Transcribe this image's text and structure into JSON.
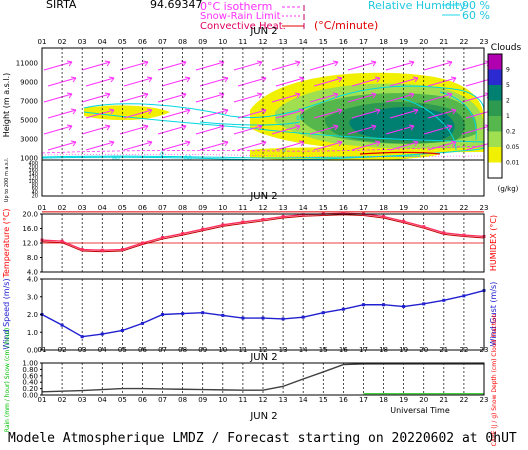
{
  "header": {
    "station": "SIRTA",
    "coords": "94.69347",
    "legend_iso": "0°C isotherm",
    "legend_snow": "Snow-Rain Limit",
    "legend_conv": "Convective Heat.",
    "legend_conv_unit": "(°C/minute)",
    "legend_rh": "Relative Humidity",
    "rh_high": "90 %",
    "rh_low": "60 %"
  },
  "hours": [
    "01",
    "02",
    "03",
    "04",
    "05",
    "06",
    "07",
    "08",
    "09",
    "10",
    "11",
    "12",
    "13",
    "14",
    "15",
    "16",
    "17",
    "18",
    "19",
    "20",
    "21",
    "22",
    "23"
  ],
  "date_label": "JUN  2",
  "xaxis_label": "Universal Time",
  "footer": "Modele Atmospherique LMDZ / Forecast starting on 20220602 at 0hUT",
  "colors": {
    "hum_cyan": "#00d8e0",
    "conv_red": "#e00000",
    "magenta": "#ff30ff",
    "temp_red": "#ff3060",
    "wind_blue": "#2020d0",
    "rain_green": "#00c000",
    "cape_red": "#ff0000"
  },
  "chart_data": [
    {
      "type": "heatmap",
      "ylabel": "Height (m a.s.l.)",
      "ylabel_low": "Up to 200 m a.s.l.",
      "yticks": [
        "11000",
        "9000",
        "7000",
        "5000",
        "3000",
        "1000",
        "400",
        "200",
        "160",
        "140",
        "120",
        "100",
        "80",
        "60",
        "40",
        "20"
      ],
      "legend_title": "Clouds",
      "legend_unit": "(g/kg)",
      "cloud_levels": [
        "9",
        "5",
        "2",
        "1",
        "0.2",
        "0.05",
        "0.01"
      ],
      "cloud_colors": [
        "#b000b0",
        "#2a2ad0",
        "#008070",
        "#2e9a50",
        "#56b84c",
        "#a0e050",
        "#f0f000",
        "#ffffff"
      ],
      "wind_arrows": "magenta",
      "labels_in_plot": [
        "80",
        "0"
      ]
    },
    {
      "type": "line",
      "ylabel": "Temperature (°C)",
      "ylabel_right": "HUMIDEX (°C)",
      "ylim": [
        4,
        20
      ],
      "yticks": [
        "20.0",
        "16.0",
        "12.0",
        "8.0",
        "4.0"
      ],
      "series": [
        {
          "values": [
            12.8,
            12.5,
            10.2,
            10.0,
            10.2,
            12.0,
            13.5,
            14.6,
            15.8,
            17.0,
            17.8,
            18.5,
            19.3,
            19.8,
            20.0,
            20.2,
            20.0,
            19.3,
            18.0,
            16.5,
            14.8,
            14.2,
            13.8
          ]
        }
      ]
    },
    {
      "type": "line",
      "ylabel": "Wind Speed (m/s)",
      "ylabel_right": "Wind Gust (m/s)",
      "ylim": [
        0,
        4
      ],
      "yticks": [
        "4.0",
        "3.0",
        "2.0",
        "1.0",
        "0.0"
      ],
      "series": [
        {
          "values": [
            2.0,
            1.4,
            0.75,
            0.9,
            1.1,
            1.5,
            2.0,
            2.05,
            2.1,
            1.95,
            1.8,
            1.8,
            1.75,
            1.85,
            2.1,
            2.3,
            2.55,
            2.55,
            2.45,
            2.6,
            2.8,
            3.05,
            3.35
          ]
        }
      ]
    },
    {
      "type": "line",
      "ylabel": "Rain (mm / hour) Snow (cm / hour)",
      "ylabel_right": "CAPE (J / g) Snow Depth (cm) Cloud Fraction",
      "ylim": [
        0,
        1
      ],
      "yticks": [
        "1.00",
        "0.80",
        "0.60",
        "0.40",
        "0.20",
        "0.00"
      ],
      "series": [
        {
          "values": [
            0.1,
            0.12,
            0.14,
            0.17,
            0.2,
            0.2,
            0.19,
            0.18,
            0.17,
            0.16,
            0.15,
            0.15,
            0.27,
            0.5,
            0.72,
            0.95,
            0.97,
            0.97,
            0.97,
            0.97,
            0.97,
            0.97,
            0.97
          ]
        },
        {
          "values": [
            null,
            null,
            null,
            null,
            null,
            null,
            null,
            null,
            null,
            null,
            null,
            null,
            null,
            null,
            null,
            null,
            0.04,
            0.04,
            0.04,
            0.04,
            0.04,
            0.04,
            0.04
          ]
        }
      ]
    }
  ]
}
